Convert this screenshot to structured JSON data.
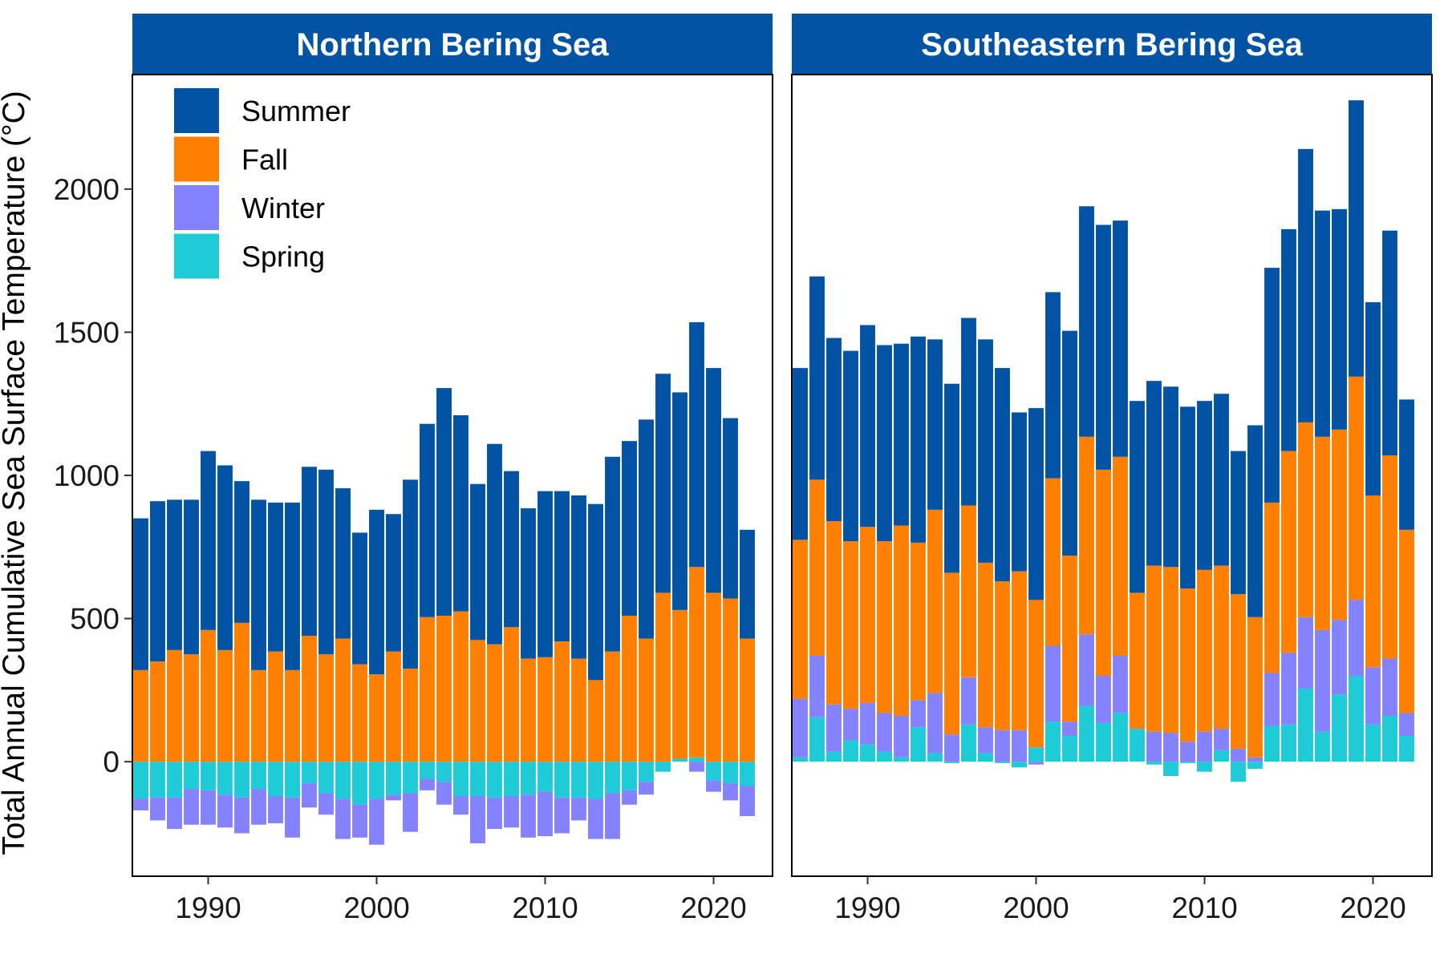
{
  "chart_data": {
    "type": "bar",
    "stacked": true,
    "ylabel": "Total Annual Cumulative Sea Surface Temperature (°C)",
    "xlabel": "",
    "ylim": [
      -400,
      2400
    ],
    "yticks": [
      0,
      500,
      1000,
      1500,
      2000
    ],
    "xlim": [
      1985.5,
      2023.5
    ],
    "xticks": [
      1990,
      2000,
      2010,
      2020
    ],
    "grid": false,
    "legend_position": "top-left",
    "colors": {
      "Summer": "#0353a4",
      "Fall": "#ff8000",
      "Winter": "#8482ff",
      "Spring": "#1fcbd7",
      "strip": "#0353a4"
    },
    "stack_order": [
      "Spring",
      "Winter",
      "Fall",
      "Summer"
    ],
    "legend": [
      "Summer",
      "Fall",
      "Winter",
      "Spring"
    ],
    "years": [
      1986,
      1987,
      1988,
      1989,
      1990,
      1991,
      1992,
      1993,
      1994,
      1995,
      1996,
      1997,
      1998,
      1999,
      2000,
      2001,
      2002,
      2003,
      2004,
      2005,
      2006,
      2007,
      2008,
      2009,
      2010,
      2011,
      2012,
      2013,
      2014,
      2015,
      2016,
      2017,
      2018,
      2019,
      2020,
      2021,
      2022
    ],
    "panels": [
      {
        "title": "Northern Bering Sea",
        "series": [
          {
            "name": "Spring",
            "values": [
              -130,
              -125,
              -125,
              -95,
              -100,
              -115,
              -125,
              -95,
              -120,
              -125,
              -75,
              -110,
              -130,
              -150,
              -130,
              -115,
              -110,
              -60,
              -70,
              -120,
              -120,
              -125,
              -120,
              -115,
              -105,
              -125,
              -125,
              -130,
              -110,
              -100,
              -70,
              -35,
              10,
              15,
              -65,
              -75,
              -85
            ]
          },
          {
            "name": "Winter",
            "values": [
              -40,
              -80,
              -110,
              -125,
              -120,
              -115,
              -125,
              -125,
              -95,
              -140,
              -85,
              -75,
              -140,
              -115,
              -160,
              -20,
              -135,
              -40,
              -80,
              -65,
              -165,
              -110,
              -110,
              -150,
              -155,
              -125,
              -80,
              -140,
              -160,
              -50,
              -45,
              0,
              0,
              -35,
              -40,
              -60,
              -105
            ]
          },
          {
            "name": "Fall",
            "values": [
              320,
              350,
              390,
              375,
              460,
              390,
              485,
              320,
              385,
              320,
              440,
              375,
              430,
              340,
              305,
              385,
              325,
              505,
              510,
              525,
              425,
              410,
              470,
              360,
              365,
              420,
              360,
              285,
              385,
              510,
              430,
              590,
              520,
              665,
              590,
              570,
              430
            ]
          },
          {
            "name": "Summer",
            "values": [
              530,
              560,
              525,
              540,
              625,
              645,
              495,
              595,
              520,
              585,
              590,
              645,
              525,
              460,
              575,
              480,
              660,
              675,
              795,
              685,
              545,
              700,
              545,
              525,
              580,
              525,
              570,
              615,
              680,
              610,
              765,
              765,
              760,
              855,
              785,
              630,
              380
            ]
          }
        ]
      },
      {
        "title": "Southeastern Bering Sea",
        "series": [
          {
            "name": "Spring",
            "values": [
              15,
              155,
              35,
              75,
              60,
              35,
              15,
              120,
              30,
              -5,
              130,
              30,
              -5,
              -20,
              50,
              140,
              90,
              195,
              135,
              170,
              115,
              -10,
              -50,
              -5,
              -35,
              40,
              -70,
              -25,
              125,
              130,
              255,
              105,
              235,
              300,
              130,
              160,
              90
            ]
          },
          {
            "name": "Winter",
            "values": [
              205,
              215,
              165,
              110,
              145,
              135,
              145,
              95,
              210,
              95,
              165,
              90,
              110,
              110,
              -10,
              265,
              50,
              250,
              165,
              200,
              0,
              105,
              100,
              70,
              105,
              75,
              45,
              15,
              185,
              250,
              250,
              355,
              260,
              265,
              200,
              200,
              80
            ]
          },
          {
            "name": "Fall",
            "values": [
              555,
              615,
              640,
              585,
              615,
              600,
              665,
              550,
              640,
              565,
              600,
              575,
              520,
              555,
              515,
              585,
              580,
              690,
              720,
              695,
              475,
              580,
              580,
              535,
              565,
              570,
              540,
              490,
              595,
              705,
              680,
              675,
              665,
              780,
              600,
              710,
              640
            ]
          },
          {
            "name": "Summer",
            "values": [
              600,
              710,
              640,
              665,
              705,
              685,
              635,
              720,
              595,
              660,
              655,
              780,
              745,
              555,
              670,
              650,
              785,
              805,
              855,
              825,
              670,
              645,
              630,
              635,
              590,
              600,
              500,
              670,
              820,
              775,
              955,
              790,
              770,
              965,
              675,
              785,
              455
            ]
          }
        ]
      }
    ]
  }
}
